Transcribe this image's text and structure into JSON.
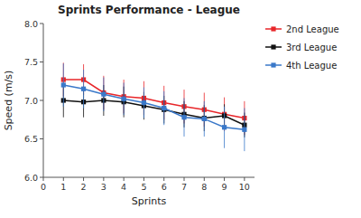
{
  "chart_data": {
    "type": "line",
    "title": "Sprints Performance - League",
    "x_label": "Sprints",
    "y_label": "Speed (m/s)",
    "x": [
      1,
      2,
      3,
      4,
      5,
      6,
      7,
      8,
      9,
      10
    ],
    "series": [
      {
        "name": "2nd League",
        "color": "#e8262a",
        "marker": "square",
        "values": [
          7.27,
          7.27,
          7.1,
          7.05,
          7.03,
          6.97,
          6.92,
          6.88,
          6.82,
          6.77
        ],
        "errors": [
          0.22,
          0.2,
          0.22,
          0.22,
          0.22,
          0.22,
          0.22,
          0.22,
          0.22,
          0.22
        ]
      },
      {
        "name": "3rd League",
        "color": "#111111",
        "marker": "square",
        "values": [
          7.0,
          6.98,
          7.0,
          6.98,
          6.93,
          6.88,
          6.82,
          6.77,
          6.8,
          6.68
        ],
        "errors": [
          0.22,
          0.2,
          0.2,
          0.2,
          0.18,
          0.18,
          0.17,
          0.17,
          0.15,
          0.16
        ]
      },
      {
        "name": "4th League",
        "color": "#3a78c9",
        "marker": "square",
        "values": [
          7.2,
          7.15,
          7.08,
          7.02,
          6.97,
          6.9,
          6.78,
          6.76,
          6.65,
          6.62
        ],
        "errors": [
          0.28,
          0.25,
          0.22,
          0.21,
          0.2,
          0.22,
          0.25,
          0.23,
          0.27,
          0.28
        ]
      }
    ],
    "xlim": [
      0,
      10.5
    ],
    "ylim": [
      6.0,
      8.0
    ],
    "xticks": [
      0,
      1,
      2,
      3,
      4,
      5,
      6,
      7,
      8,
      9,
      10
    ],
    "yticks": [
      {
        "value": 6.0,
        "label": "6.0"
      },
      6.5,
      {
        "value": 7.0,
        "label": "7.0"
      },
      7.5,
      {
        "value": 8.0,
        "label": "8.0"
      }
    ],
    "grid": false,
    "legend": "right"
  }
}
